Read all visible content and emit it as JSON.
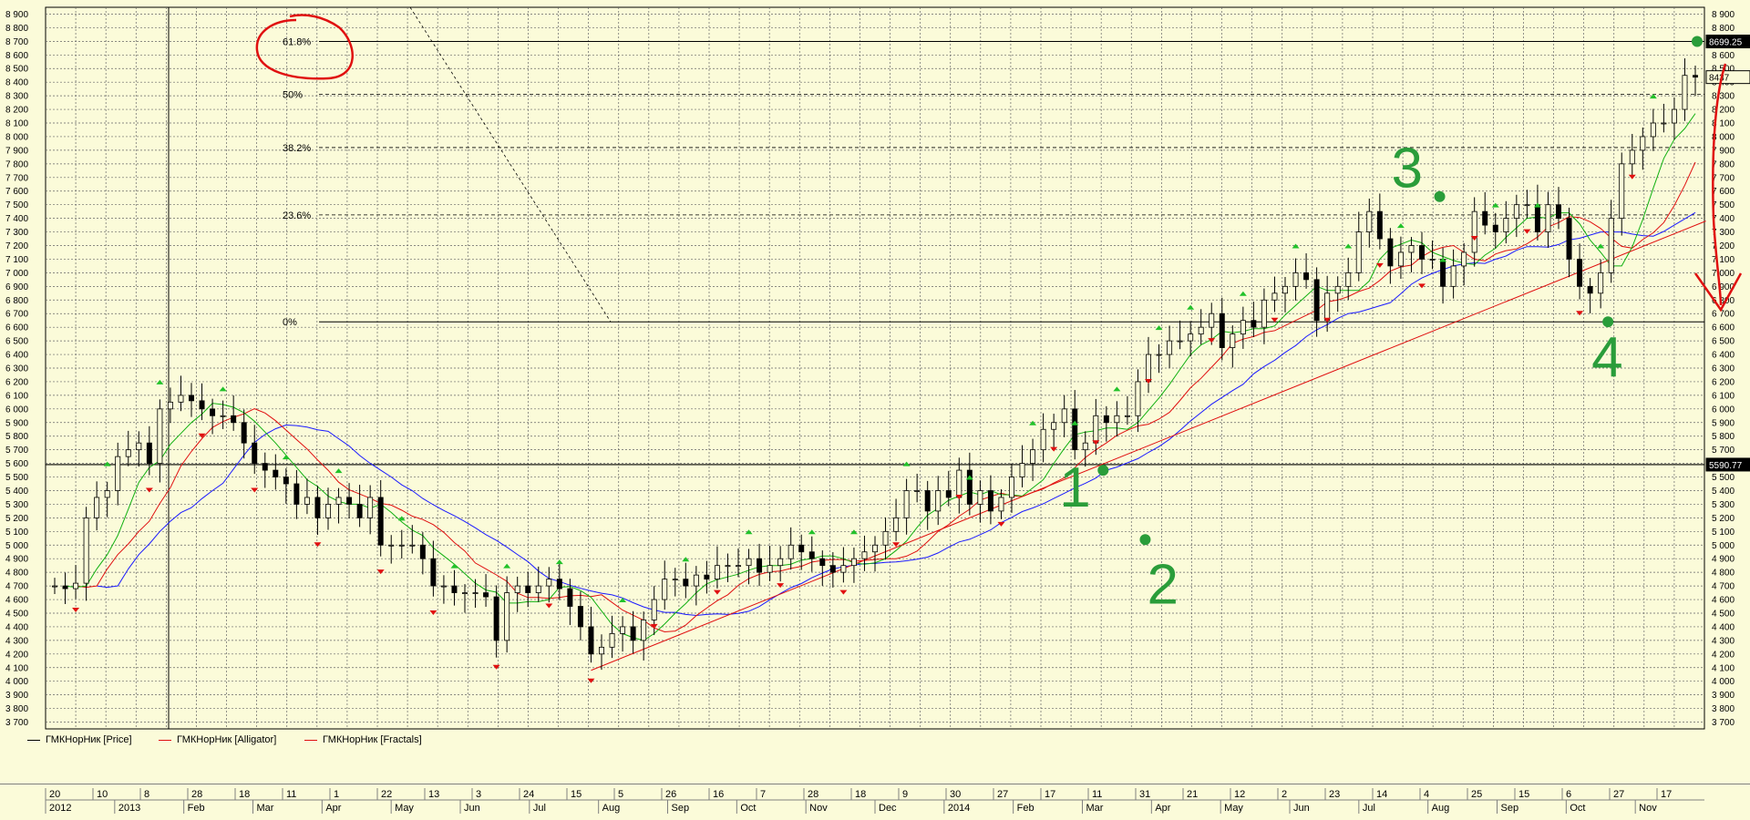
{
  "colors": {
    "background": "#fbfbd9",
    "grid": "#666666",
    "candle": "#000000",
    "fractal_up": "#22c22a",
    "fractal_down": "#e01010",
    "jaw": "#1a1aff",
    "teeth": "#e01010",
    "lips": "#11b011",
    "trendline": "#e01010",
    "annotation_green": "#2a9d3a",
    "annotation_red": "#e01010"
  },
  "legend": [
    {
      "label": "ГМКНорНик [Price]",
      "color": "#000000"
    },
    {
      "label": "ГМКНорНик [Alligator]",
      "color": "#e01010"
    },
    {
      "label": "ГМКНорНик [Fractals]",
      "color": "#e01010"
    }
  ],
  "fibonacci": [
    {
      "label": "61.8%",
      "value": 8699
    },
    {
      "label": "50%",
      "value": 8310
    },
    {
      "label": "38.2%",
      "value": 7920
    },
    {
      "label": "23.6%",
      "value": 7425
    },
    {
      "label": "0%",
      "value": 6640
    }
  ],
  "price_tags": [
    {
      "label": "8699.25",
      "value": 8699
    },
    {
      "label": "8437",
      "value": 8437
    },
    {
      "label": "5590.77",
      "value": 5591
    }
  ],
  "annotations": {
    "points": [
      {
        "label": "1",
        "value": 5550,
        "week": 99
      },
      {
        "label": "2",
        "value": 5040,
        "week": 103
      },
      {
        "label": "3",
        "value": 7560,
        "week": 131
      },
      {
        "label": "4",
        "value": 6640,
        "week": 147
      }
    ]
  },
  "timescale": {
    "days": [
      "20",
      "10",
      "8",
      "28",
      "18",
      "11",
      "1",
      "22",
      "13",
      "3",
      "24",
      "15",
      "5",
      "26",
      "16",
      "7",
      "28",
      "18",
      "9",
      "30",
      "27",
      "17",
      "11",
      "31",
      "21",
      "12",
      "2",
      "23",
      "14",
      "4",
      "25",
      "15",
      "6",
      "27",
      "17"
    ],
    "months": [
      "2012",
      "2013",
      "Feb",
      "Mar",
      "Apr",
      "May",
      "Jun",
      "Jul",
      "Aug",
      "Sep",
      "Oct",
      "Nov",
      "Dec",
      "2014",
      "Feb",
      "Mar",
      "Apr",
      "May",
      "Jun",
      "Jul",
      "Aug",
      "Sep",
      "Oct",
      "Nov"
    ]
  },
  "chart_data": {
    "type": "candlestick",
    "y_axis": {
      "min": 3650,
      "max": 8950,
      "ticks": [
        3700,
        3800,
        3900,
        4000,
        4100,
        4200,
        4300,
        4400,
        4500,
        4600,
        4700,
        4800,
        4900,
        5000,
        5100,
        5200,
        5300,
        5400,
        5500,
        5600,
        5700,
        5800,
        5900,
        6000,
        6100,
        6200,
        6300,
        6400,
        6500,
        6600,
        6700,
        6800,
        6900,
        7000,
        7100,
        7200,
        7300,
        7400,
        7500,
        7600,
        7700,
        7800,
        7900,
        8000,
        8100,
        8200,
        8300,
        8400,
        8500,
        8600,
        8700,
        8800,
        8900
      ],
      "tick_format": "space-thousands",
      "side": "right"
    },
    "x_axis": {
      "start": "2012-11-20",
      "end": "2014-11-17",
      "weeks": 157
    },
    "weekly_close": [
      4700,
      4680,
      4720,
      5200,
      5350,
      5400,
      5650,
      5700,
      5750,
      5600,
      6000,
      6050,
      6100,
      6060,
      6000,
      5950,
      5950,
      5900,
      5750,
      5600,
      5550,
      5500,
      5450,
      5300,
      5350,
      5200,
      5300,
      5350,
      5300,
      5200,
      5350,
      5000,
      5000,
      5000,
      5000,
      4900,
      4700,
      4700,
      4650,
      4650,
      4650,
      4620,
      4300,
      4650,
      4700,
      4650,
      4700,
      4750,
      4680,
      4550,
      4400,
      4200,
      4250,
      4350,
      4400,
      4300,
      4450,
      4600,
      4750,
      4750,
      4700,
      4780,
      4750,
      4850,
      4850,
      4850,
      4900,
      4800,
      4850,
      4900,
      5000,
      4950,
      4900,
      4850,
      4800,
      4850,
      4900,
      4950,
      5000,
      5100,
      5200,
      5400,
      5400,
      5250,
      5400,
      5350,
      5550,
      5300,
      5400,
      5250,
      5350,
      5500,
      5600,
      5700,
      5850,
      5900,
      6000,
      5700,
      5750,
      5950,
      5900,
      5950,
      5950,
      6200,
      6400,
      6400,
      6500,
      6500,
      6550,
      6600,
      6700,
      6450,
      6550,
      6650,
      6600,
      6800,
      6850,
      6900,
      7000,
      6950,
      6650,
      6850,
      6900,
      7000,
      7300,
      7450,
      7250,
      7050,
      7150,
      7200,
      7100,
      7100,
      6900,
      7050,
      7150,
      7450,
      7350,
      7300,
      7400,
      7500,
      7500,
      7300,
      7500,
      7400,
      7100,
      6900,
      6850,
      7000,
      7400,
      7800,
      7900,
      8000,
      8100,
      8100,
      8200,
      8450,
      8437
    ],
    "fractal_up_weeks": [
      5,
      10,
      16,
      22,
      27,
      33,
      38,
      43,
      48,
      54,
      60,
      66,
      72,
      76,
      81,
      87,
      93,
      97,
      101,
      105,
      108,
      113,
      118,
      123,
      128,
      132,
      137,
      141,
      147,
      152
    ],
    "fractal_down_weeks": [
      2,
      9,
      14,
      19,
      25,
      31,
      36,
      42,
      47,
      51,
      57,
      63,
      69,
      75,
      80,
      86,
      90,
      95,
      99,
      104,
      110,
      116,
      121,
      126,
      130,
      135,
      140,
      145,
      150
    ],
    "trendline": {
      "from_week": 51,
      "from_value": 4080,
      "to_week": 157,
      "to_value": 7380
    },
    "series": [
      {
        "name": "ГМКНорНик [Price]",
        "kind": "candles"
      },
      {
        "name": "ГМКНорНик [Alligator]",
        "kind": "lines"
      },
      {
        "name": "ГМКНорНик [Fractals]",
        "kind": "markers"
      }
    ],
    "grid": true,
    "legend_position": "bottom-left"
  }
}
